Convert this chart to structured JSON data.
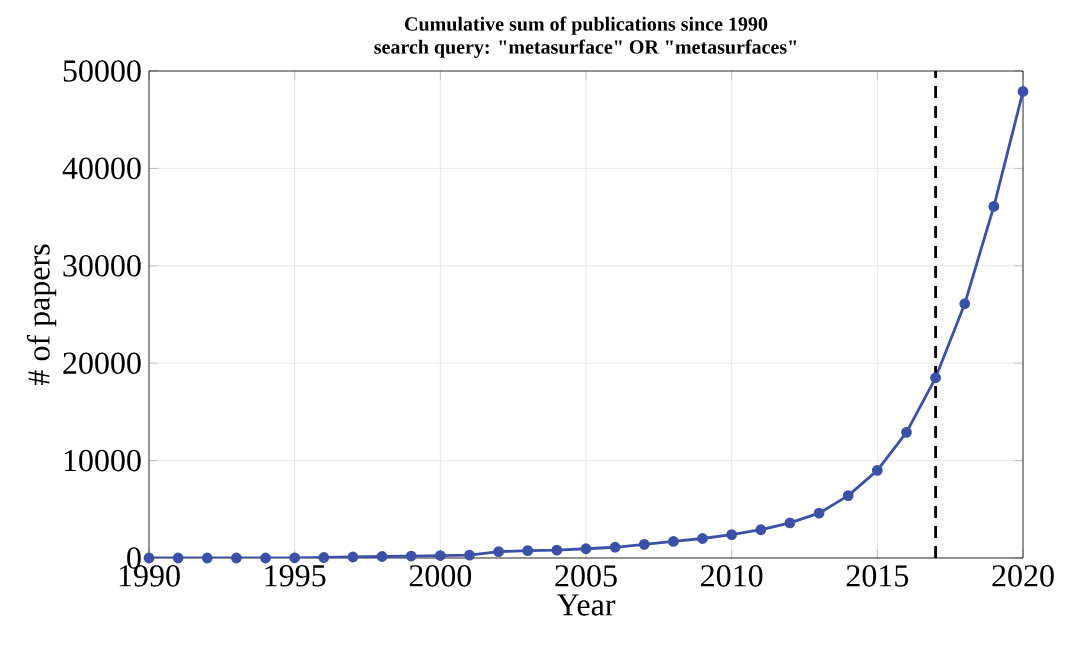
{
  "chart_data": {
    "type": "line",
    "title": "Cumulative sum of publications since 1990",
    "subtitle": "search query: \"metasurface\" OR \"metasurfaces\"",
    "xlabel": "Year",
    "ylabel": "# of papers",
    "x": [
      1990,
      1991,
      1992,
      1993,
      1994,
      1995,
      1996,
      1997,
      1998,
      1999,
      2000,
      2001,
      2002,
      2003,
      2004,
      2005,
      2006,
      2007,
      2008,
      2009,
      2010,
      2011,
      2012,
      2013,
      2014,
      2015,
      2016,
      2017,
      2018,
      2019,
      2020
    ],
    "series": [
      {
        "color": "#3b51a8",
        "values": [
          0,
          0,
          0,
          0,
          0,
          20,
          50,
          100,
          150,
          200,
          250,
          300,
          650,
          750,
          800,
          950,
          1100,
          1400,
          1700,
          2000,
          2400,
          2900,
          3600,
          4600,
          6400,
          9000,
          12900,
          18500,
          26100,
          36100,
          47900
        ]
      }
    ],
    "xlim": [
      1990,
      2020
    ],
    "ylim": [
      0,
      50000
    ],
    "xticks": [
      1990,
      1995,
      2000,
      2005,
      2010,
      2015,
      2020
    ],
    "yticks": [
      0,
      10000,
      20000,
      30000,
      40000,
      50000
    ],
    "ref_lines": [
      {
        "axis": "x",
        "value": 2017,
        "color": "#000000",
        "line_style": "dashed"
      }
    ],
    "grid": true,
    "marker": "circle",
    "line_style": "solid"
  }
}
